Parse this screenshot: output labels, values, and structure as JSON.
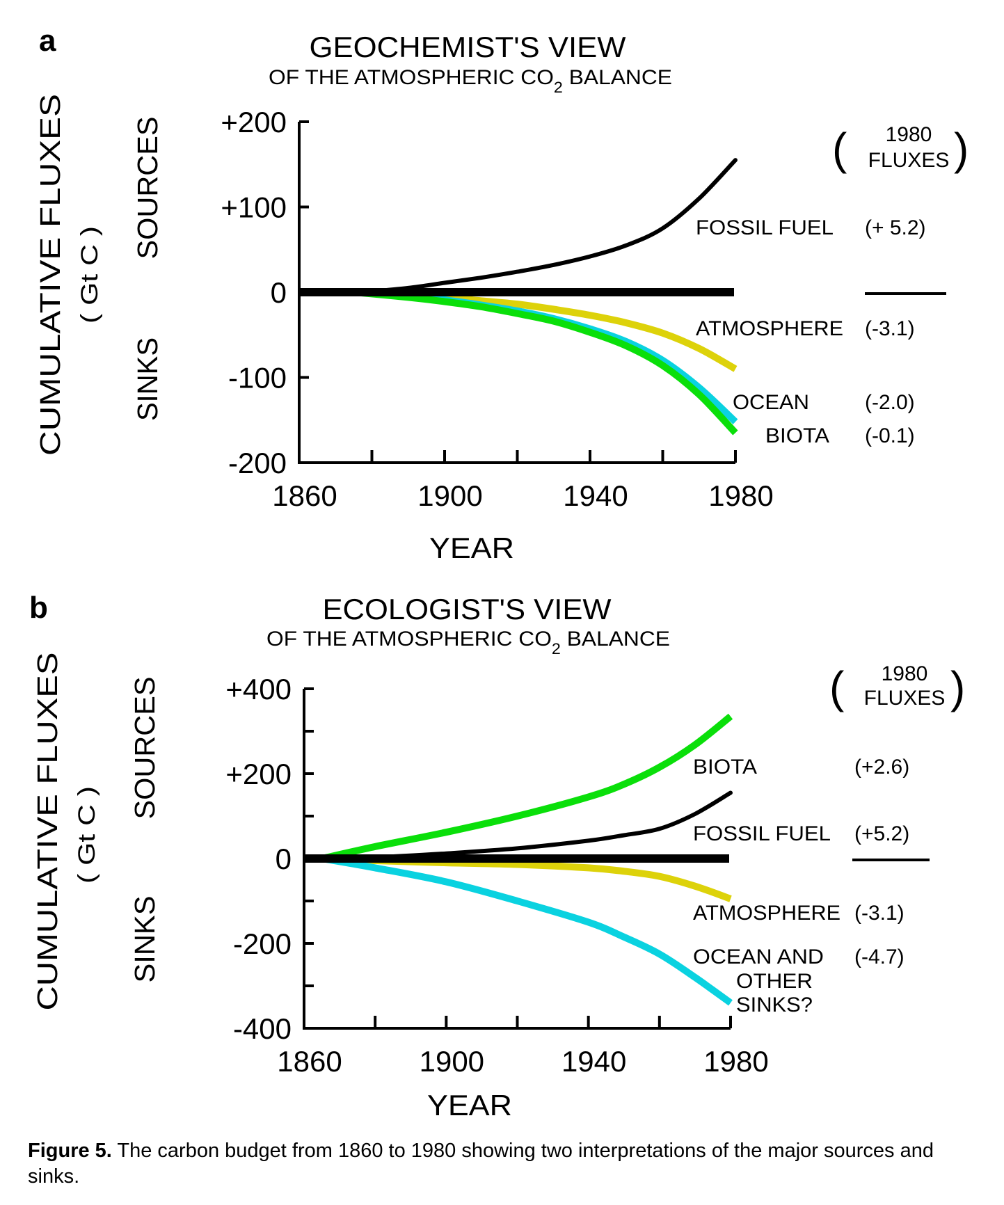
{
  "figure": {
    "caption_label": "Figure 5.",
    "caption_text": " The carbon budget from 1860 to 1980 showing two interpretations of the major sources and sinks."
  },
  "chart_data": [
    {
      "type": "line",
      "panel_label": "a",
      "title": "GEOCHEMIST'S VIEW",
      "subtitle_parts": [
        "OF THE ATMOSPHERIC CO",
        "2",
        " BALANCE"
      ],
      "ylabel": "CUMULATIVE FLUXES",
      "ylabel_units": "( Gt C )",
      "ylabel_sources": "SOURCES",
      "ylabel_sinks": "SINKS",
      "xlabel": "YEAR",
      "xlim": [
        1860,
        1980
      ],
      "ylim": [
        -200,
        200
      ],
      "xticks": [
        1860,
        1880,
        1900,
        1920,
        1940,
        1960,
        1980
      ],
      "xtick_labels": [
        "1860",
        "1900",
        "1940",
        "1980"
      ],
      "xtick_label_values": [
        1860,
        1900,
        1940,
        1980
      ],
      "yticks": [
        200,
        100,
        0,
        -100,
        -200
      ],
      "ytick_labels": [
        "+200",
        "+100",
        "0",
        "-100",
        "-200"
      ],
      "flux_header_line1": "1980",
      "flux_header_line2": "FLUXES",
      "series": [
        {
          "name": "FOSSIL FUEL",
          "flux": "(+ 5.2)",
          "color": "#000000",
          "x": [
            1878,
            1890,
            1900,
            1910,
            1920,
            1930,
            1940,
            1950,
            1960,
            1970,
            1980
          ],
          "y": [
            0,
            5,
            11,
            17,
            24,
            32,
            42,
            55,
            75,
            110,
            155
          ]
        },
        {
          "name": "ATMOSPHERE",
          "flux": "(-3.1)",
          "color": "#ddd20a",
          "x": [
            1878,
            1890,
            1900,
            1910,
            1920,
            1930,
            1940,
            1950,
            1960,
            1970,
            1980
          ],
          "y": [
            0,
            -3,
            -6,
            -10,
            -14,
            -20,
            -27,
            -36,
            -48,
            -66,
            -90
          ]
        },
        {
          "name": "OCEAN",
          "flux": "(-2.0)",
          "color": "#0ad2e0",
          "x": [
            1878,
            1890,
            1900,
            1910,
            1920,
            1930,
            1940,
            1950,
            1960,
            1970,
            1980
          ],
          "y": [
            0,
            -4,
            -9,
            -15,
            -22,
            -31,
            -43,
            -58,
            -80,
            -112,
            -152
          ]
        },
        {
          "name": "BIOTA",
          "flux": "(-0.1)",
          "color": "#0adf0a",
          "x": [
            1875,
            1890,
            1900,
            1910,
            1920,
            1930,
            1940,
            1950,
            1960,
            1970,
            1980
          ],
          "y": [
            0,
            -6,
            -11,
            -17,
            -25,
            -34,
            -47,
            -63,
            -86,
            -120,
            -165
          ]
        }
      ],
      "baseline": {
        "y": 0,
        "x": [
          1860,
          1980
        ]
      }
    },
    {
      "type": "line",
      "panel_label": "b",
      "title": "ECOLOGIST'S VIEW",
      "subtitle_parts": [
        "OF THE ATMOSPHERIC CO",
        "2",
        " BALANCE"
      ],
      "ylabel": "CUMULATIVE FLUXES",
      "ylabel_units": "( Gt C )",
      "ylabel_sources": "SOURCES",
      "ylabel_sinks": "SINKS",
      "xlabel": "YEAR",
      "xlim": [
        1860,
        1980
      ],
      "ylim": [
        -400,
        400
      ],
      "xticks": [
        1860,
        1880,
        1900,
        1920,
        1940,
        1960,
        1980
      ],
      "xtick_labels": [
        "1860",
        "1900",
        "1940",
        "1980"
      ],
      "xtick_label_values": [
        1860,
        1900,
        1940,
        1980
      ],
      "yticks": [
        400,
        300,
        200,
        100,
        0,
        -100,
        -200,
        -300,
        -400
      ],
      "ytick_labels": [
        "+400",
        "+200",
        "0",
        "-200",
        "-400"
      ],
      "ytick_label_values": [
        400,
        200,
        0,
        -200,
        -400
      ],
      "flux_header_line1": "1980",
      "flux_header_line2": "FLUXES",
      "series": [
        {
          "name": "BIOTA",
          "flux": "(+2.6)",
          "color": "#0adf0a",
          "x": [
            1865,
            1880,
            1900,
            1920,
            1940,
            1950,
            1960,
            1970,
            1980
          ],
          "y": [
            0,
            28,
            62,
            100,
            145,
            175,
            215,
            268,
            335
          ]
        },
        {
          "name": "FOSSIL FUEL",
          "flux": "(+5.2)",
          "color": "#000000",
          "x": [
            1865,
            1880,
            1900,
            1920,
            1940,
            1950,
            1960,
            1970,
            1980
          ],
          "y": [
            0,
            3,
            12,
            24,
            42,
            55,
            70,
            105,
            155
          ]
        },
        {
          "name": "ATMOSPHERE",
          "flux": "(-3.1)",
          "color": "#ddd20a",
          "x": [
            1865,
            1880,
            1900,
            1920,
            1940,
            1950,
            1960,
            1970,
            1980
          ],
          "y": [
            0,
            -5,
            -10,
            -14,
            -22,
            -30,
            -42,
            -65,
            -95
          ]
        },
        {
          "name": "OCEAN AND OTHER SINKS?",
          "label_lines": [
            "OCEAN AND",
            "OTHER",
            "SINKS?"
          ],
          "flux": "(-4.7)",
          "color": "#0ad2e0",
          "x": [
            1865,
            1880,
            1900,
            1920,
            1940,
            1950,
            1960,
            1970,
            1980
          ],
          "y": [
            0,
            -22,
            -55,
            -100,
            -150,
            -185,
            -225,
            -280,
            -340
          ]
        }
      ],
      "baseline": {
        "y": 0,
        "x": [
          1860,
          1980
        ]
      }
    }
  ]
}
